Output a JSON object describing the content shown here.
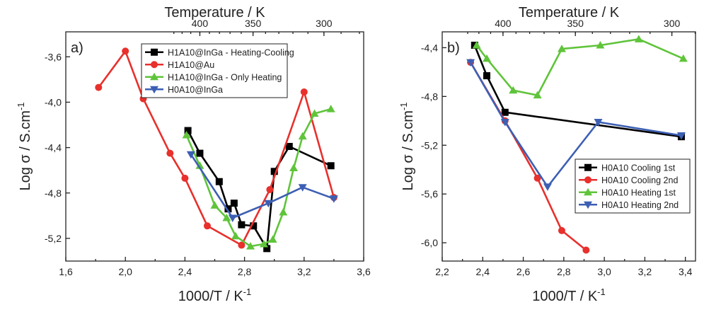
{
  "chart_data": [
    {
      "type": "line",
      "panel_label": "a)",
      "xlabel": "1000/T / K",
      "xlabel_sup": "-1",
      "ylabel": "Log σ / S.cm",
      "ylabel_sup": "-1",
      "top_xlabel": "Temperature / K",
      "xlim": [
        1.6,
        3.6
      ],
      "ylim": [
        -5.4,
        -3.38
      ],
      "xticks": [
        "1,6",
        "2,0",
        "2,4",
        "2,8",
        "3,2",
        "3,6"
      ],
      "yticks": [
        "-3,6",
        "-4,0",
        "-4,4",
        "-4,8",
        "-5,2"
      ],
      "top_ticks": [
        "300",
        "350",
        "400"
      ],
      "legend_position": "top-right",
      "series": [
        {
          "name": "H1A10@InGa - Heating-Cooling",
          "color": "#000000",
          "marker": "square",
          "x": [
            2.42,
            2.5,
            2.63,
            2.69,
            2.73,
            2.78,
            2.86,
            2.95,
            3.0,
            3.1,
            3.38
          ],
          "y": [
            -4.25,
            -4.45,
            -4.7,
            -4.94,
            -4.89,
            -5.08,
            -5.09,
            -5.29,
            -4.61,
            -4.39,
            -4.56
          ]
        },
        {
          "name": "H1A10@Au",
          "color": "#e8302c",
          "marker": "circle",
          "x": [
            1.82,
            2.0,
            2.12,
            2.3,
            2.4,
            2.55,
            2.78,
            2.97,
            3.2,
            3.4
          ],
          "y": [
            -3.87,
            -3.55,
            -3.97,
            -4.45,
            -4.67,
            -5.09,
            -5.26,
            -4.77,
            -3.91,
            -4.84
          ]
        },
        {
          "name": "H1A10@InGa - Only Heating",
          "color": "#5fc43a",
          "marker": "triangle-up",
          "x": [
            2.41,
            2.5,
            2.6,
            2.68,
            2.74,
            2.84,
            2.93,
            2.99,
            3.06,
            3.13,
            3.19,
            3.27,
            3.38
          ],
          "y": [
            -4.29,
            -4.56,
            -4.91,
            -5.02,
            -5.18,
            -5.27,
            -5.25,
            -5.21,
            -4.97,
            -4.58,
            -4.3,
            -4.1,
            -4.06
          ]
        },
        {
          "name": "H0A10@InGa",
          "color": "#3d5fb3",
          "marker": "triangle-down",
          "x": [
            2.44,
            2.72,
            2.96,
            3.19,
            3.4
          ],
          "y": [
            -4.46,
            -5.02,
            -4.89,
            -4.75,
            -4.85
          ]
        }
      ]
    },
    {
      "type": "line",
      "panel_label": "b)",
      "xlabel": "1000/T / K",
      "xlabel_sup": "-1",
      "ylabel": "Log σ / S.cm",
      "ylabel_sup": "-1",
      "top_xlabel": "Temperature / K",
      "xlim": [
        2.2,
        3.45
      ],
      "ylim": [
        -6.15,
        -4.27
      ],
      "xticks": [
        "2,2",
        "2,4",
        "2,6",
        "2,8",
        "3,0",
        "3,2",
        "3,4"
      ],
      "yticks": [
        "-4,4",
        "-4,8",
        "-5,2",
        "-5,6",
        "-6,0"
      ],
      "top_ticks": [
        "300",
        "350",
        "400"
      ],
      "legend_position": "bottom-right",
      "series": [
        {
          "name": "H0A10 Cooling 1st",
          "color": "#000000",
          "marker": "square",
          "x": [
            2.36,
            2.42,
            2.51,
            3.38
          ],
          "y": [
            -4.38,
            -4.63,
            -4.93,
            -5.13
          ]
        },
        {
          "name": "H0A10 Cooling 2nd",
          "color": "#e8302c",
          "marker": "circle",
          "x": [
            2.34,
            2.51,
            2.67,
            2.79,
            2.91
          ],
          "y": [
            -4.52,
            -5.0,
            -5.47,
            -5.9,
            -6.06
          ]
        },
        {
          "name": "H0A10 Heating 1st",
          "color": "#5fc43a",
          "marker": "triangle-up",
          "x": [
            2.37,
            2.42,
            2.55,
            2.67,
            2.79,
            2.98,
            3.17,
            3.39
          ],
          "y": [
            -4.38,
            -4.49,
            -4.75,
            -4.79,
            -4.41,
            -4.38,
            -4.33,
            -4.49
          ]
        },
        {
          "name": "H0A10 Heating 2nd",
          "color": "#3d5fb3",
          "marker": "triangle-down",
          "x": [
            2.34,
            2.51,
            2.72,
            2.97,
            3.38
          ],
          "y": [
            -4.52,
            -5.01,
            -5.54,
            -5.01,
            -5.12
          ]
        }
      ]
    }
  ]
}
